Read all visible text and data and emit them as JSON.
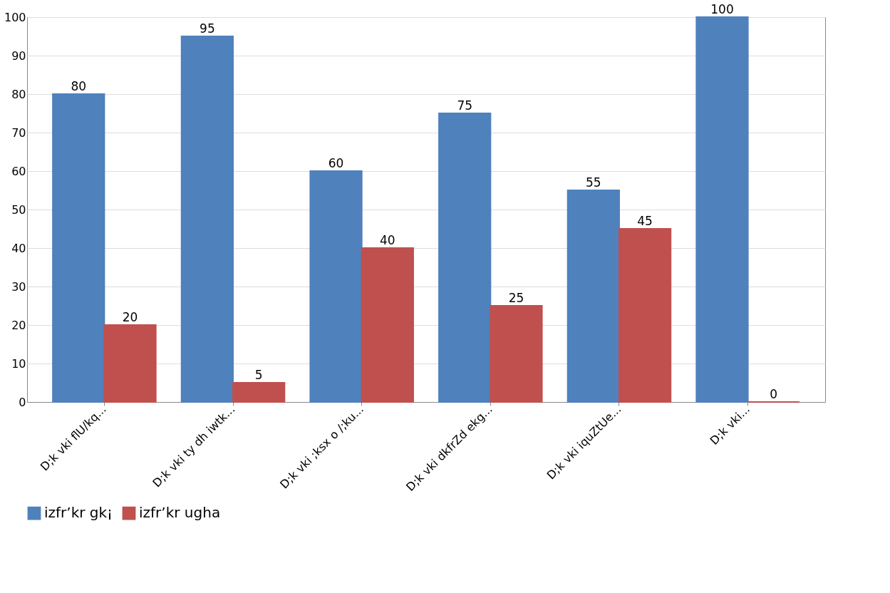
{
  "chart_data": {
    "type": "bar",
    "categories": [
      "D;k vki flU/kq...",
      "D;k vki ty dh iwtk...",
      "D;k vki ;ksx o /;ku...",
      "D;k vki dkfrZd ekg...",
      "D;k vki iquZtUe...",
      "D;k vki..."
    ],
    "series": [
      {
        "name": "izfr’kr gk¡",
        "color": "#4f81bd",
        "values": [
          80,
          95,
          60,
          75,
          55,
          100
        ]
      },
      {
        "name": "izfr’kr ugha",
        "color": "#c0504d",
        "values": [
          20,
          5,
          40,
          25,
          45,
          0
        ]
      }
    ],
    "ylim": [
      0,
      100
    ],
    "yticks": [
      0,
      10,
      20,
      30,
      40,
      50,
      60,
      70,
      80,
      90,
      100
    ],
    "grid": "y",
    "legend": "bottom",
    "data_labels": true
  }
}
